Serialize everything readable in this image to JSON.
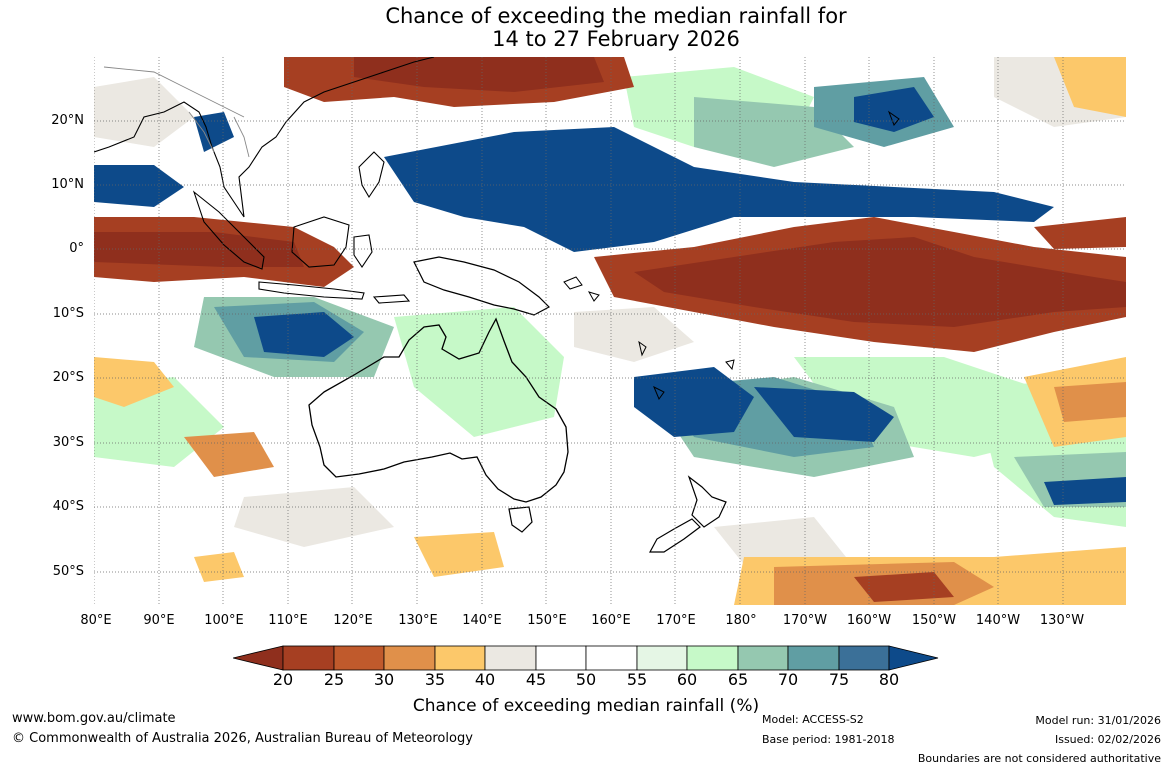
{
  "title": {
    "line1": "Chance of exceeding the median rainfall for",
    "line2": "14 to 27 February 2026"
  },
  "map": {
    "latitude_labels": [
      "20°N",
      "10°N",
      "0°",
      "10°S",
      "20°S",
      "30°S",
      "40°S",
      "50°S"
    ],
    "longitude_labels": [
      "80°E",
      "90°E",
      "100°E",
      "110°E",
      "120°E",
      "130°E",
      "140°E",
      "150°E",
      "160°E",
      "170°E",
      "180°",
      "170°W",
      "160°W",
      "150°W",
      "140°W",
      "130°W"
    ],
    "colors": {
      "c_lt20": "#8f2f1d",
      "c20": "#a63f22",
      "c25": "#c05a2c",
      "c30": "#e0904a",
      "c35": "#fcc86a",
      "c40": "#ebe8e2",
      "c45": "#ffffff",
      "c50": "#ffffff",
      "c55": "#e5f6e5",
      "c60": "#c6f9c8",
      "c65": "#95c8b0",
      "c70": "#609ea3",
      "c75": "#3b7098",
      "c_gt80": "#0d4a8a",
      "land_outline": "#000000"
    }
  },
  "legend": {
    "ticks": [
      "20",
      "25",
      "30",
      "35",
      "40",
      "45",
      "50",
      "55",
      "60",
      "65",
      "70",
      "75",
      "80"
    ],
    "label": "Chance of exceeding median rainfall (%)"
  },
  "footer": {
    "website": "www.bom.gov.au/climate",
    "copyright": "© Commonwealth of Australia 2026, Australian Bureau of Meteorology",
    "model": "Model: ACCESS-S2",
    "base_period": "Base period: 1981-2018",
    "model_run": "Model run: 31/01/2026",
    "issued": "Issued: 02/02/2026",
    "disclaimer": "Boundaries are not considered authoritative"
  }
}
